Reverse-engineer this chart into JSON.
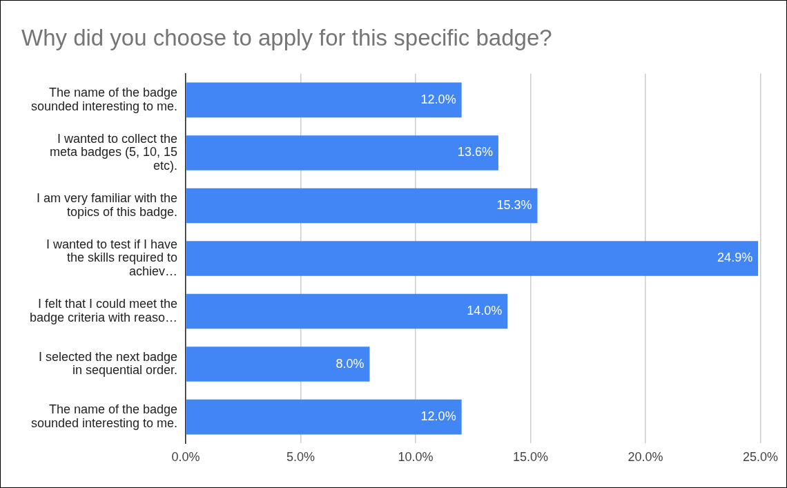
{
  "chart_data": {
    "type": "bar",
    "orientation": "horizontal",
    "title": "Why did you choose to apply for this specific badge?",
    "categories": [
      "The name of the badge sounded interesting to me.",
      "I wanted to collect the meta badges (5, 10, 15 etc).",
      "I am very familiar with the topics of this badge.",
      "I wanted to test if I have the skills required to achiev…",
      "I felt that I could meet the badge criteria with reaso…",
      "I selected the next badge in sequential order.",
      "The name of the badge sounded interesting to me."
    ],
    "values": [
      12.0,
      13.6,
      15.3,
      24.9,
      14.0,
      8.0,
      12.0
    ],
    "value_labels": [
      "12.0%",
      "13.6%",
      "15.3%",
      "24.9%",
      "14.0%",
      "8.0%",
      "12.0%"
    ],
    "color": "#4285f4",
    "xlim": [
      0,
      25
    ],
    "xticks": [
      {
        "value": 0,
        "label": "0.0%"
      },
      {
        "value": 5,
        "label": "5.0%"
      },
      {
        "value": 10,
        "label": "10.0%"
      },
      {
        "value": 15,
        "label": "15.0%"
      },
      {
        "value": 20,
        "label": "20.0%"
      },
      {
        "value": 25,
        "label": "25.0%"
      }
    ],
    "grid": "x",
    "legend": false
  }
}
